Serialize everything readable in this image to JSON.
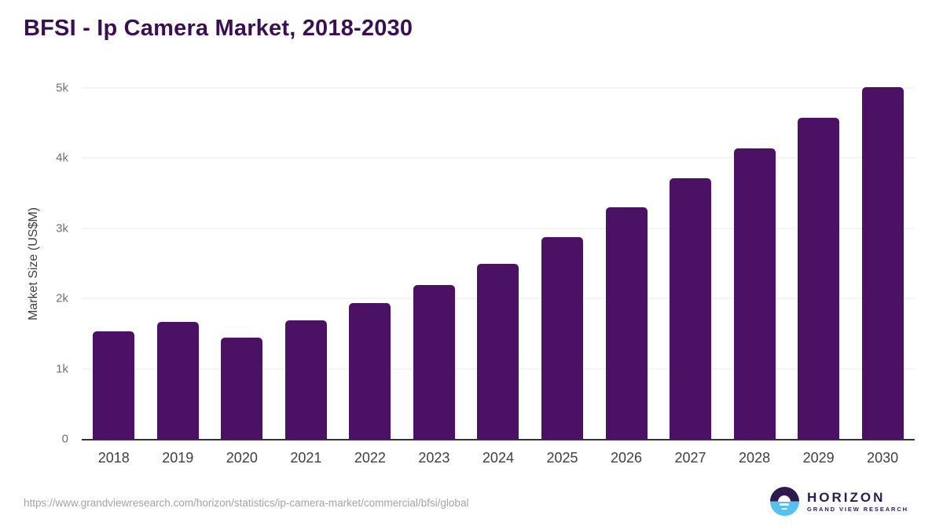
{
  "page": {
    "title": "BFSI - Ip Camera Market, 2018-2030",
    "source_url": "https://www.grandviewresearch.com/horizon/statistics/ip-camera-market/commercial/bfsi/global"
  },
  "logo": {
    "name": "HORIZON",
    "subtitle": "GRAND VIEW RESEARCH"
  },
  "colors": {
    "bar": "#4a1164",
    "title": "#3b1053",
    "gridline": "#e9e9e9",
    "axis_line": "#333333",
    "ytick_label": "#6f6f6f",
    "xtick_label": "#3f3f3f",
    "url_text": "#a3a3a3",
    "logo_purple": "#2e1a4e",
    "logo_blue": "#56c1ef",
    "background": "#ffffff"
  },
  "chart_data": {
    "type": "bar",
    "title": "BFSI - Ip Camera Market, 2018-2030",
    "categories": [
      "2018",
      "2019",
      "2020",
      "2021",
      "2022",
      "2023",
      "2024",
      "2025",
      "2026",
      "2027",
      "2028",
      "2029",
      "2030"
    ],
    "values": [
      1530,
      1670,
      1440,
      1690,
      1940,
      2190,
      2500,
      2870,
      3300,
      3710,
      4140,
      4570,
      5010
    ],
    "xlabel": "",
    "ylabel": "Market Size (US$M)",
    "ylim": [
      0,
      5000
    ],
    "yticks": [
      0,
      1000,
      2000,
      3000,
      4000,
      5000
    ],
    "ytick_labels": [
      "0",
      "1k",
      "2k",
      "3k",
      "4k",
      "5k"
    ],
    "grid": "horizontal",
    "legend": "none",
    "bar_color": "#4a1164"
  }
}
